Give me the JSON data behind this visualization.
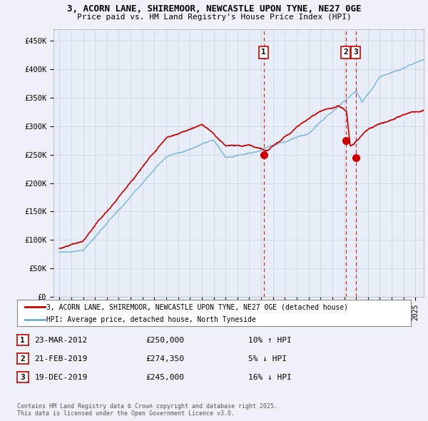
{
  "title_line1": "3, ACORN LANE, SHIREMOOR, NEWCASTLE UPON TYNE, NE27 0GE",
  "title_line2": "Price paid vs. HM Land Registry's House Price Index (HPI)",
  "ylabel_ticks": [
    "£0",
    "£50K",
    "£100K",
    "£150K",
    "£200K",
    "£250K",
    "£300K",
    "£350K",
    "£400K",
    "£450K"
  ],
  "ytick_values": [
    0,
    50000,
    100000,
    150000,
    200000,
    250000,
    300000,
    350000,
    400000,
    450000
  ],
  "xlim": [
    1994.5,
    2025.7
  ],
  "ylim": [
    0,
    470000
  ],
  "color_red": "#cc0000",
  "color_blue": "#6baed6",
  "color_vline": "#cc0000",
  "sale_dates": [
    2012.22,
    2019.13,
    2019.97
  ],
  "sale_prices": [
    250000,
    274350,
    245000
  ],
  "sale_labels": [
    "1",
    "2",
    "3"
  ],
  "legend_line1": "3, ACORN LANE, SHIREMOOR, NEWCASTLE UPON TYNE, NE27 0GE (detached house)",
  "legend_line2": "HPI: Average price, detached house, North Tyneside",
  "table_data": [
    [
      "1",
      "23-MAR-2012",
      "£250,000",
      "10% ↑ HPI"
    ],
    [
      "2",
      "21-FEB-2019",
      "£274,350",
      "5% ↓ HPI"
    ],
    [
      "3",
      "19-DEC-2019",
      "£245,000",
      "16% ↓ HPI"
    ]
  ],
  "footnote": "Contains HM Land Registry data © Crown copyright and database right 2025.\nThis data is licensed under the Open Government Licence v3.0.",
  "bg_color": "#eef2f8",
  "plot_bg": "#e8eef8",
  "grid_color": "#c8d0dc"
}
